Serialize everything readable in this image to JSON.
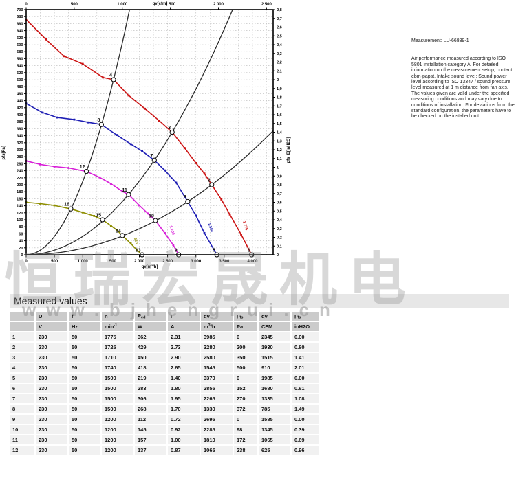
{
  "watermark": {
    "cjk": "恒瑞宏晟机电",
    "url": "www.bjhengrui.cn"
  },
  "info_panel": {
    "measurement": "Measurement: LU-66839-1",
    "body": "Air performance measured according to ISO 5801 installation category A. For detailed information on the measurement setup, contact ebm-papst. Intake sound level: Sound power level according to ISO 13347 / sound pressure level measured at 1 m distance from fan axis. The values given are valid under the specified measuring conditions and may vary due to conditions of installation. For deviations from the standard configuration, the parameters have to be checked on the installed unit."
  },
  "chart_data": {
    "type": "line",
    "title": "",
    "xlabel_bottom": "qv[m³/h]",
    "xlabel_top": "qv[cfm]",
    "ylabel_left": "pfs[Pa]",
    "ylabel_right": "pfs_E[inH2O]",
    "x_range_m3h": [
      0,
      4365
    ],
    "x_ticks_m3h": [
      0,
      500,
      1000,
      1500,
      2000,
      2500,
      3000,
      3500,
      4000
    ],
    "top_axis_range_cfm": [
      0,
      2569
    ],
    "top_ticks_cfm": [
      0,
      500,
      1000,
      1500,
      2000,
      2500
    ],
    "y_range_pa": [
      0,
      700
    ],
    "y_tick_step_pa": 20,
    "right_axis_range_inh2o": [
      0,
      2.8
    ],
    "right_axis_tick_step": 0.1,
    "grid": {
      "x_step_m3h": 250,
      "y_step_pa": 20
    },
    "series": [
      {
        "name": "fan curve 1775 min-1",
        "color": "#cc1414",
        "end_label": "1.775",
        "end_label_at": [
          3830,
          95
        ],
        "points": [
          [
            0,
            672
          ],
          [
            350,
            615
          ],
          [
            670,
            567
          ],
          [
            1000,
            545
          ],
          [
            1360,
            506
          ],
          [
            1545,
            500
          ],
          [
            1810,
            455
          ],
          [
            2100,
            417
          ],
          [
            2350,
            383
          ],
          [
            2580,
            350
          ],
          [
            2800,
            305
          ],
          [
            3000,
            262
          ],
          [
            3150,
            232
          ],
          [
            3280,
            200
          ],
          [
            3450,
            158
          ],
          [
            3600,
            115
          ],
          [
            3800,
            58
          ],
          [
            3985,
            0
          ]
        ]
      },
      {
        "name": "fan curve 1500 min-1",
        "color": "#1e1eb4",
        "end_label": "1.500",
        "end_label_at": [
          3215,
          90
        ],
        "points": [
          [
            0,
            432
          ],
          [
            290,
            406
          ],
          [
            550,
            392
          ],
          [
            850,
            386
          ],
          [
            1100,
            378
          ],
          [
            1330,
            372
          ],
          [
            1600,
            342
          ],
          [
            1850,
            316
          ],
          [
            2050,
            296
          ],
          [
            2265,
            270
          ],
          [
            2450,
            241
          ],
          [
            2650,
            206
          ],
          [
            2855,
            152
          ],
          [
            3000,
            112
          ],
          [
            3150,
            62
          ],
          [
            3370,
            0
          ]
        ]
      },
      {
        "name": "fan curve 1200 min-1",
        "color": "#d81ed8",
        "end_label": "1.200",
        "end_label_at": [
          2535,
          82
        ],
        "points": [
          [
            0,
            268
          ],
          [
            250,
            258
          ],
          [
            500,
            252
          ],
          [
            750,
            248
          ],
          [
            1065,
            238
          ],
          [
            1300,
            221
          ],
          [
            1500,
            203
          ],
          [
            1700,
            181
          ],
          [
            1810,
            172
          ],
          [
            2000,
            141
          ],
          [
            2150,
            118
          ],
          [
            2285,
            98
          ],
          [
            2450,
            62
          ],
          [
            2600,
            28
          ],
          [
            2695,
            0
          ]
        ]
      },
      {
        "name": "fan curve 950 min-1",
        "color": "#8e8e00",
        "end_label": "950",
        "end_label_at": [
          1905,
          48
        ],
        "points": [
          [
            0,
            150
          ],
          [
            250,
            146
          ],
          [
            500,
            141
          ],
          [
            790,
            131
          ],
          [
            1000,
            121
          ],
          [
            1200,
            111
          ],
          [
            1350,
            100
          ],
          [
            1500,
            83
          ],
          [
            1600,
            71
          ],
          [
            1700,
            55
          ],
          [
            1850,
            32
          ],
          [
            1950,
            15
          ],
          [
            2050,
            0
          ]
        ]
      }
    ],
    "load_lines": [
      {
        "name": "system curve A",
        "through": [
          1545,
          500
        ]
      },
      {
        "name": "system curve B",
        "through": [
          2580,
          350
        ]
      },
      {
        "name": "system curve C",
        "through": [
          3280,
          200
        ]
      }
    ],
    "measurement_points": [
      {
        "n": "1",
        "q": 3985,
        "p": 0
      },
      {
        "n": "2",
        "q": 3280,
        "p": 200
      },
      {
        "n": "3",
        "q": 2580,
        "p": 350
      },
      {
        "n": "4",
        "q": 1545,
        "p": 500
      },
      {
        "n": "5",
        "q": 3370,
        "p": 0
      },
      {
        "n": "6",
        "q": 2855,
        "p": 152
      },
      {
        "n": "7",
        "q": 2265,
        "p": 270
      },
      {
        "n": "8",
        "q": 1330,
        "p": 372
      },
      {
        "n": "9",
        "q": 2695,
        "p": 0
      },
      {
        "n": "10",
        "q": 2285,
        "p": 98
      },
      {
        "n": "11",
        "q": 1810,
        "p": 172
      },
      {
        "n": "12",
        "q": 1065,
        "p": 238
      },
      {
        "n": "13",
        "q": 2050,
        "p": 0
      },
      {
        "n": "14",
        "q": 1700,
        "p": 55
      },
      {
        "n": "15",
        "q": 1350,
        "p": 100
      },
      {
        "n": "16",
        "q": 790,
        "p": 131
      }
    ]
  },
  "measured_values": {
    "title": "Measured values",
    "columns": [
      "",
      "U",
      "f",
      "n",
      "P_{ed}",
      "I",
      "qv",
      "p_{fs}",
      "qv",
      "p_{fs}"
    ],
    "units": [
      "",
      "V",
      "Hz",
      "min^{-1}",
      "W",
      "A",
      "m^{3}/h",
      "Pa",
      "CFM",
      "inH2O"
    ],
    "rows": [
      [
        "1",
        "230",
        "50",
        "1775",
        "362",
        "2.31",
        "3985",
        "0",
        "2345",
        "0.00"
      ],
      [
        "2",
        "230",
        "50",
        "1725",
        "429",
        "2.73",
        "3280",
        "200",
        "1930",
        "0.80"
      ],
      [
        "3",
        "230",
        "50",
        "1710",
        "450",
        "2.90",
        "2580",
        "350",
        "1515",
        "1.41"
      ],
      [
        "4",
        "230",
        "50",
        "1740",
        "418",
        "2.65",
        "1545",
        "500",
        "910",
        "2.01"
      ],
      [
        "5",
        "230",
        "50",
        "1500",
        "219",
        "1.40",
        "3370",
        "0",
        "1985",
        "0.00"
      ],
      [
        "6",
        "230",
        "50",
        "1500",
        "283",
        "1.80",
        "2855",
        "152",
        "1680",
        "0.61"
      ],
      [
        "7",
        "230",
        "50",
        "1500",
        "306",
        "1.95",
        "2265",
        "270",
        "1335",
        "1.08"
      ],
      [
        "8",
        "230",
        "50",
        "1500",
        "268",
        "1.70",
        "1330",
        "372",
        "785",
        "1.49"
      ],
      [
        "9",
        "230",
        "50",
        "1200",
        "112",
        "0.72",
        "2695",
        "0",
        "1585",
        "0.00"
      ],
      [
        "10",
        "230",
        "50",
        "1200",
        "145",
        "0.92",
        "2285",
        "98",
        "1345",
        "0.39"
      ],
      [
        "11",
        "230",
        "50",
        "1200",
        "157",
        "1.00",
        "1810",
        "172",
        "1065",
        "0.69"
      ],
      [
        "12",
        "230",
        "50",
        "1200",
        "137",
        "0.87",
        "1065",
        "238",
        "625",
        "0.96"
      ]
    ]
  }
}
